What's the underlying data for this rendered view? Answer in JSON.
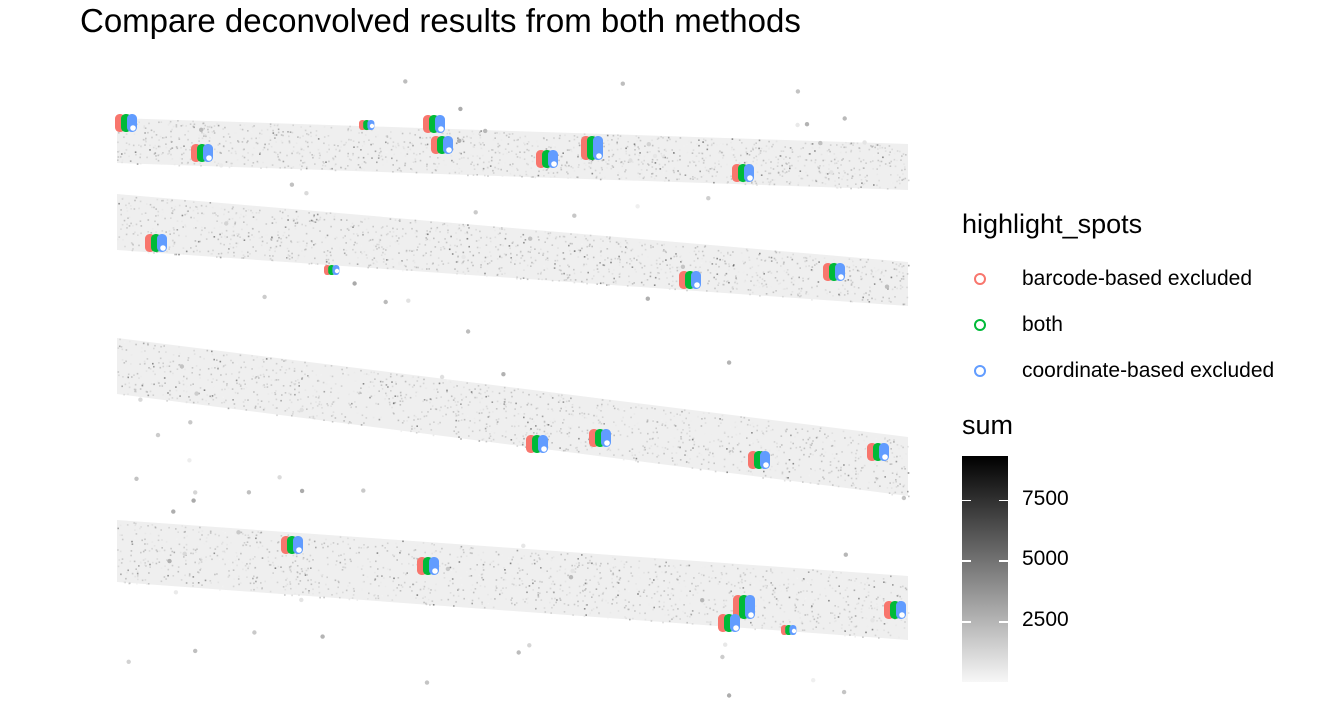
{
  "title": "Compare deconvolved results from both methods",
  "colors": {
    "barcode-based excluded": "#F8766D",
    "both": "#00BA38",
    "coordinate-based excluded": "#619CFF"
  },
  "legend_highlight": {
    "title": "highlight_spots",
    "entries": [
      "barcode-based excluded",
      "both",
      "coordinate-based excluded"
    ]
  },
  "legend_sum": {
    "title": "sum",
    "ticks": [
      "7500",
      "5000",
      "2500"
    ],
    "tick_values": [
      7500,
      5000,
      2500
    ],
    "min": 0,
    "max": 9300,
    "low_color": "#f7f7f7",
    "high_color": "#000000"
  },
  "chart_data": {
    "type": "scatter",
    "title": "Compare deconvolved results from both methods",
    "xlabel": "",
    "ylabel": "",
    "axes_visible": false,
    "grid": false,
    "color_variable": "highlight_spots",
    "fill_variable": "sum",
    "series": [
      {
        "name": "barcode-based excluded",
        "color": "#F8766D"
      },
      {
        "name": "both",
        "color": "#00BA38"
      },
      {
        "name": "coordinate-based excluded",
        "color": "#619CFF"
      }
    ],
    "legend_position": "right"
  }
}
